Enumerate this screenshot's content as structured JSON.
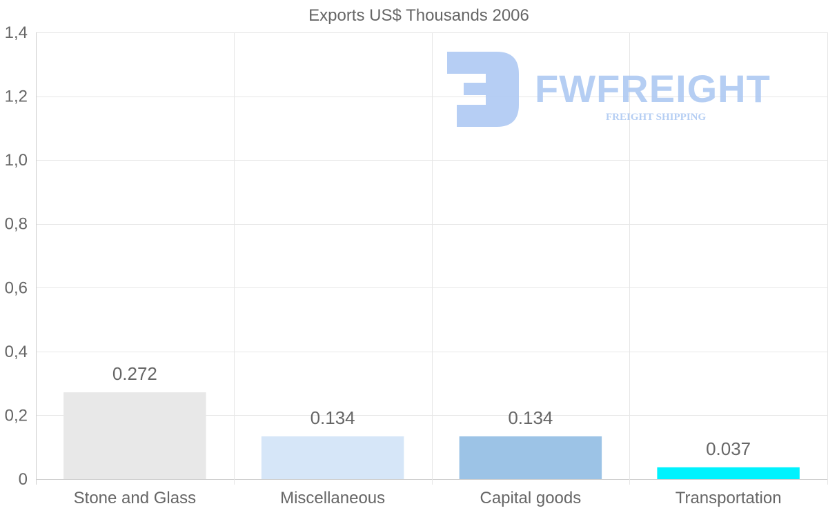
{
  "chart_data": {
    "type": "bar",
    "title": "Exports US$ Thousands 2006",
    "categories": [
      "Stone and Glass",
      "Miscellaneous",
      "Capital goods",
      "Transportation"
    ],
    "values": [
      0.272,
      0.134,
      0.134,
      0.037
    ],
    "data_labels": [
      "0.272",
      "0.134",
      "0.134",
      "0.037"
    ],
    "colors": [
      "#e8e8e8",
      "#d6e6f8",
      "#9cc3e6",
      "#00f2fe"
    ],
    "ylim": [
      0,
      1.4
    ],
    "yticks": [
      0,
      0.2,
      0.4,
      0.6,
      0.8,
      1.0,
      1.2,
      1.4
    ],
    "ytick_labels": [
      "0",
      "0,2",
      "0,4",
      "0,6",
      "0,8",
      "1,0",
      "1,2",
      "1,4"
    ],
    "xlabel": "",
    "ylabel": "",
    "grid": true,
    "legend": "none"
  },
  "watermark": {
    "name": "FWFREIGHT",
    "tagline": "FREIGHT SHIPPING",
    "color": "#a9c6f2"
  },
  "colors": {
    "text": "#666666",
    "grid": "#e6e6e6"
  }
}
